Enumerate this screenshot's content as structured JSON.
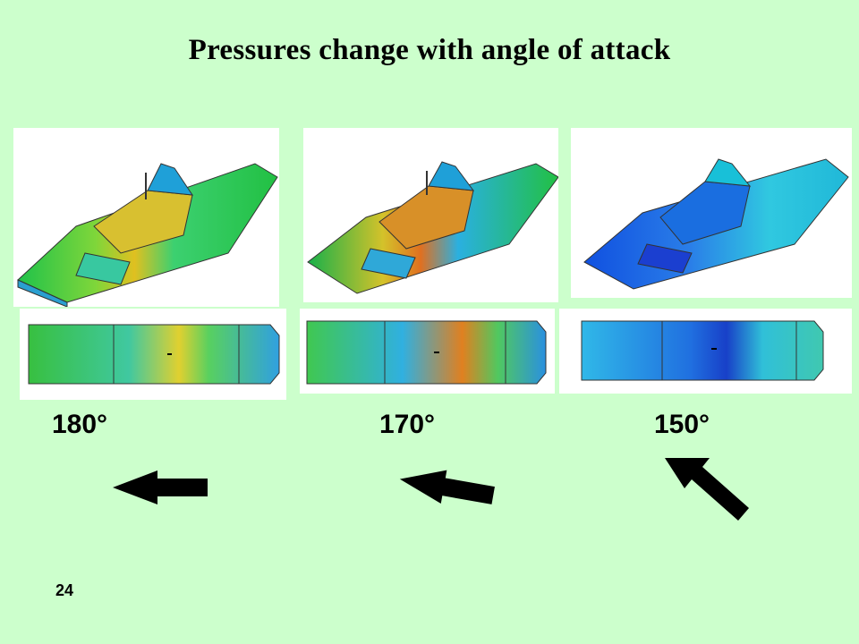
{
  "title": "Pressures change with angle of attack",
  "cases": [
    {
      "angle": "180°"
    },
    {
      "angle": "170°"
    },
    {
      "angle": "150°"
    }
  ],
  "slide_number": "24"
}
